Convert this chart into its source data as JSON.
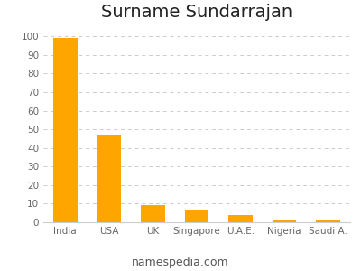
{
  "title": "Surname Sundarrajan",
  "categories": [
    "India",
    "USA",
    "UK",
    "Singapore",
    "U.A.E.",
    "Nigeria",
    "Saudi A."
  ],
  "values": [
    99,
    47,
    9,
    7,
    4,
    1,
    1
  ],
  "bar_color": "#FFA500",
  "ylim": [
    0,
    105
  ],
  "yticks": [
    0,
    10,
    20,
    30,
    40,
    50,
    60,
    70,
    80,
    90,
    100
  ],
  "background_color": "#ffffff",
  "title_fontsize": 14,
  "tick_fontsize": 7.5,
  "grid_color": "#cccccc",
  "footer_text": "namespedia.com",
  "footer_fontsize": 9,
  "bar_width": 0.55
}
